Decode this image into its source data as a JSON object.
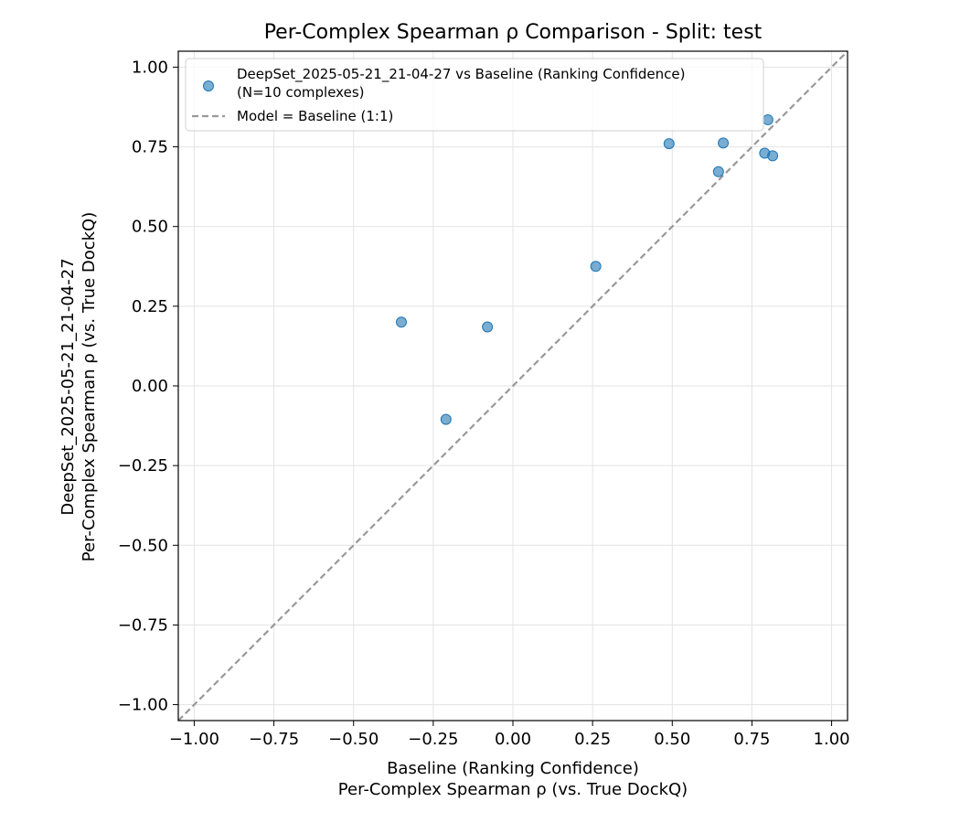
{
  "chart_data": {
    "type": "scatter",
    "title": "Per-Complex Spearman ρ Comparison - Split: test",
    "xlabel_lines": [
      "Baseline (Ranking Confidence)",
      "Per-Complex Spearman ρ (vs. True DockQ)"
    ],
    "ylabel_lines": [
      "DeepSet_2025-05-21_21-04-27",
      "Per-Complex Spearman ρ (vs. True DockQ)"
    ],
    "xlim": [
      -1.05,
      1.05
    ],
    "ylim": [
      -1.05,
      1.05
    ],
    "xticks": [
      -1.0,
      -0.75,
      -0.5,
      -0.25,
      0.0,
      0.25,
      0.5,
      0.75,
      1.0
    ],
    "yticks": [
      -1.0,
      -0.75,
      -0.5,
      -0.25,
      0.0,
      0.25,
      0.5,
      0.75,
      1.0
    ],
    "xtick_labels": [
      "−1.00",
      "−0.75",
      "−0.50",
      "−0.25",
      "0.00",
      "0.25",
      "0.50",
      "0.75",
      "1.00"
    ],
    "ytick_labels": [
      "−1.00",
      "−0.75",
      "−0.50",
      "−0.25",
      "0.00",
      "0.25",
      "0.50",
      "0.75",
      "1.00"
    ],
    "grid": true,
    "legend_placement": "top-left",
    "series": [
      {
        "name": "DeepSet_2025-05-21_21-04-27 vs Baseline (Ranking Confidence)",
        "name_line2": "(N=10 complexes)",
        "color": "#1f77b4",
        "points": [
          {
            "x": -0.35,
            "y": 0.2
          },
          {
            "x": -0.21,
            "y": -0.105
          },
          {
            "x": -0.08,
            "y": 0.185
          },
          {
            "x": 0.26,
            "y": 0.375
          },
          {
            "x": 0.49,
            "y": 0.76
          },
          {
            "x": 0.645,
            "y": 0.672
          },
          {
            "x": 0.66,
            "y": 0.762
          },
          {
            "x": 0.79,
            "y": 0.73
          },
          {
            "x": 0.8,
            "y": 0.835
          },
          {
            "x": 0.815,
            "y": 0.722
          }
        ]
      }
    ],
    "reference_line": {
      "name": "Model = Baseline (1:1)",
      "color": "#999999"
    }
  }
}
